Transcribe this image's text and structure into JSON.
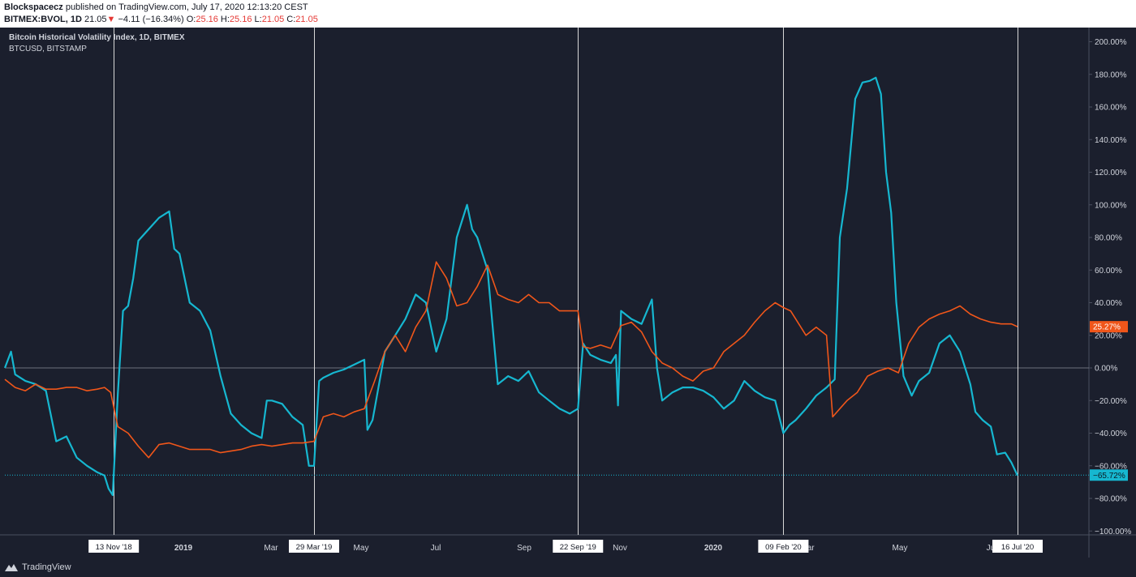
{
  "header": {
    "publisher": "Blockspacecz",
    "published_text": " published on TradingView.com, July 17, 2020 12:13:20 CEST",
    "symbol": "BITMEX:BVOL, 1D",
    "last": "21.05",
    "change_arrow": "▼",
    "change": "−4.11 (−16.34%)",
    "o_label": "O:",
    "o_val": "25.16",
    "h_label": "H:",
    "h_val": "25.16",
    "l_label": "L:",
    "l_val": "21.05",
    "c_label": "C:",
    "c_val": "21.05"
  },
  "legend": {
    "title": "Bitcoin Historical Volatility Index, 1D, BITMEX",
    "subtitle": "BTCUSD, BITSTAMP"
  },
  "footer": {
    "brand": "TradingView"
  },
  "colors": {
    "background": "#1b1f2d",
    "btc": "#16b7d0",
    "bvol": "#f0561a",
    "axis_text": "#d1d4dc",
    "crosshair": "#d8d8d8"
  },
  "chart_data": {
    "type": "line",
    "y_unit": "%",
    "ylim": [
      -105,
      205
    ],
    "y_ticks": [
      "200.00%",
      "180.00%",
      "160.00%",
      "140.00%",
      "120.00%",
      "100.00%",
      "80.00%",
      "60.00%",
      "40.00%",
      "20.00%",
      "0.00%",
      "−20.00%",
      "−40.00%",
      "−60.00%",
      "−80.00%",
      "−100.00%"
    ],
    "x_ticks": [
      "2019",
      "Mar",
      "May",
      "Jul",
      "Sep",
      "Nov",
      "2020",
      "Mar",
      "May",
      "Jul"
    ],
    "x_tick_pos": [
      14.7,
      20.6,
      26.5,
      32.5,
      38.8,
      44.8,
      50.7,
      56.5,
      62.5,
      68.6
    ],
    "date_markers": [
      {
        "label": "13 Nov '18",
        "week": 10.6
      },
      {
        "label": "29 Mar '19",
        "week": 30.1
      },
      {
        "label": "22 Sep '19",
        "week": 55.8
      },
      {
        "label": "09 Feb '20",
        "week": 75.8
      },
      {
        "label": "16 Jul '20",
        "week": 98.6
      }
    ],
    "x_range_weeks": [
      0,
      98.6
    ],
    "current_labels": [
      {
        "series": "BTCUSD",
        "text": "−65.72%",
        "value": -65.72
      },
      {
        "series": "BVOL",
        "text": "25.27%",
        "value": 25.27
      }
    ],
    "series": [
      {
        "id": "BTCUSD",
        "color": "#16b7d0",
        "points": [
          [
            0,
            0
          ],
          [
            0.6,
            10
          ],
          [
            1,
            -4
          ],
          [
            2,
            -8
          ],
          [
            3,
            -10
          ],
          [
            4,
            -14
          ],
          [
            5,
            -45
          ],
          [
            6,
            -42
          ],
          [
            7,
            -55
          ],
          [
            8,
            -60
          ],
          [
            9,
            -64
          ],
          [
            9.7,
            -66
          ],
          [
            10.1,
            -74
          ],
          [
            10.5,
            -78
          ],
          [
            11,
            -16
          ],
          [
            11.5,
            35
          ],
          [
            12,
            38
          ],
          [
            12.5,
            55
          ],
          [
            13,
            78
          ],
          [
            14,
            85
          ],
          [
            15,
            92
          ],
          [
            16,
            96
          ],
          [
            16.5,
            73
          ],
          [
            17,
            70
          ],
          [
            18,
            40
          ],
          [
            19,
            35
          ],
          [
            20,
            23
          ],
          [
            21,
            -5
          ],
          [
            22,
            -28
          ],
          [
            23,
            -35
          ],
          [
            24,
            -40
          ],
          [
            25,
            -43
          ],
          [
            25.5,
            -20
          ],
          [
            26,
            -20
          ],
          [
            27,
            -22
          ],
          [
            28,
            -30
          ],
          [
            29,
            -35
          ],
          [
            29.6,
            -60
          ],
          [
            30.1,
            -60
          ],
          [
            30.6,
            -8
          ],
          [
            31,
            -6
          ],
          [
            32,
            -3
          ],
          [
            33,
            -1
          ],
          [
            34,
            2
          ],
          [
            35,
            5
          ],
          [
            35.3,
            -38
          ],
          [
            35.8,
            -32
          ],
          [
            36,
            -25
          ],
          [
            37,
            10
          ],
          [
            38,
            20
          ],
          [
            39,
            30
          ],
          [
            40,
            45
          ],
          [
            41,
            40
          ],
          [
            42,
            10
          ],
          [
            43,
            30
          ],
          [
            44,
            80
          ],
          [
            45,
            100
          ],
          [
            45.5,
            85
          ],
          [
            46,
            80
          ],
          [
            47,
            60
          ],
          [
            48,
            -10
          ],
          [
            49,
            -5
          ],
          [
            50,
            -8
          ],
          [
            51,
            -2
          ],
          [
            52,
            -15
          ],
          [
            53,
            -20
          ],
          [
            54,
            -25
          ],
          [
            55,
            -28
          ],
          [
            55.8,
            -25
          ],
          [
            56.3,
            15
          ],
          [
            57,
            8
          ],
          [
            58,
            5
          ],
          [
            59,
            3
          ],
          [
            59.5,
            8
          ],
          [
            59.7,
            -23
          ],
          [
            60,
            35
          ],
          [
            61,
            30
          ],
          [
            62,
            27
          ],
          [
            63,
            42
          ],
          [
            63.5,
            0
          ],
          [
            64,
            -20
          ],
          [
            65,
            -15
          ],
          [
            66,
            -12
          ],
          [
            67,
            -12
          ],
          [
            68,
            -14
          ],
          [
            69,
            -18
          ],
          [
            70,
            -25
          ],
          [
            71,
            -20
          ],
          [
            72,
            -8
          ],
          [
            73,
            -14
          ],
          [
            74,
            -18
          ],
          [
            75,
            -20
          ],
          [
            75.8,
            -40
          ],
          [
            76.4,
            -35
          ],
          [
            77,
            -32
          ],
          [
            78,
            -25
          ],
          [
            79,
            -17
          ],
          [
            80,
            -12
          ],
          [
            80.8,
            -7
          ],
          [
            81.3,
            80
          ],
          [
            82,
            110
          ],
          [
            82.8,
            165
          ],
          [
            83.5,
            175
          ],
          [
            84.2,
            176
          ],
          [
            84.8,
            178
          ],
          [
            85.3,
            168
          ],
          [
            85.8,
            120
          ],
          [
            86.3,
            95
          ],
          [
            86.8,
            40
          ],
          [
            87.5,
            -5
          ],
          [
            88.3,
            -17
          ],
          [
            89,
            -8
          ],
          [
            90,
            -3
          ],
          [
            91,
            15
          ],
          [
            92,
            20
          ],
          [
            93,
            10
          ],
          [
            94,
            -10
          ],
          [
            94.5,
            -27
          ],
          [
            95.2,
            -32
          ],
          [
            96,
            -36
          ],
          [
            96.6,
            -53
          ],
          [
            97.4,
            -52
          ],
          [
            98,
            -58
          ],
          [
            98.6,
            -66
          ]
        ]
      },
      {
        "id": "BVOL",
        "color": "#f0561a",
        "points": [
          [
            0,
            -7
          ],
          [
            1,
            -12
          ],
          [
            2,
            -14
          ],
          [
            3,
            -10
          ],
          [
            4,
            -13
          ],
          [
            5,
            -13
          ],
          [
            6,
            -12
          ],
          [
            7,
            -12
          ],
          [
            8,
            -14
          ],
          [
            9,
            -13
          ],
          [
            9.7,
            -12
          ],
          [
            10.3,
            -15
          ],
          [
            11,
            -36
          ],
          [
            12,
            -40
          ],
          [
            13,
            -48
          ],
          [
            14,
            -55
          ],
          [
            15,
            -47
          ],
          [
            16,
            -46
          ],
          [
            17,
            -48
          ],
          [
            18,
            -50
          ],
          [
            19,
            -50
          ],
          [
            20,
            -50
          ],
          [
            21,
            -52
          ],
          [
            22,
            -51
          ],
          [
            23,
            -50
          ],
          [
            24,
            -48
          ],
          [
            25,
            -47
          ],
          [
            26,
            -48
          ],
          [
            27,
            -47
          ],
          [
            28,
            -46
          ],
          [
            29,
            -46
          ],
          [
            30.1,
            -45
          ],
          [
            31,
            -30
          ],
          [
            32,
            -28
          ],
          [
            33,
            -30
          ],
          [
            34,
            -27
          ],
          [
            35,
            -25
          ],
          [
            36,
            -8
          ],
          [
            37,
            10
          ],
          [
            38,
            20
          ],
          [
            39,
            10
          ],
          [
            40,
            25
          ],
          [
            41,
            35
          ],
          [
            42,
            65
          ],
          [
            43,
            55
          ],
          [
            44,
            38
          ],
          [
            45,
            40
          ],
          [
            46,
            50
          ],
          [
            47,
            63
          ],
          [
            48,
            45
          ],
          [
            49,
            42
          ],
          [
            50,
            40
          ],
          [
            51,
            45
          ],
          [
            52,
            40
          ],
          [
            53,
            40
          ],
          [
            54,
            35
          ],
          [
            55.8,
            35
          ],
          [
            56.3,
            13
          ],
          [
            57,
            12
          ],
          [
            58,
            14
          ],
          [
            59,
            12
          ],
          [
            60,
            26
          ],
          [
            61,
            28
          ],
          [
            62,
            22
          ],
          [
            63,
            10
          ],
          [
            64,
            3
          ],
          [
            65,
            0
          ],
          [
            66,
            -5
          ],
          [
            67,
            -8
          ],
          [
            68,
            -2
          ],
          [
            69,
            0
          ],
          [
            70,
            10
          ],
          [
            71,
            15
          ],
          [
            72,
            20
          ],
          [
            73,
            28
          ],
          [
            74,
            35
          ],
          [
            75,
            40
          ],
          [
            75.8,
            37
          ],
          [
            76.5,
            35
          ],
          [
            77,
            30
          ],
          [
            78,
            20
          ],
          [
            79,
            25
          ],
          [
            80,
            20
          ],
          [
            80.6,
            -30
          ],
          [
            81.3,
            -25
          ],
          [
            82,
            -20
          ],
          [
            83,
            -15
          ],
          [
            84,
            -5
          ],
          [
            85,
            -2
          ],
          [
            86,
            0
          ],
          [
            87,
            -3
          ],
          [
            88,
            15
          ],
          [
            89,
            25
          ],
          [
            90,
            30
          ],
          [
            91,
            33
          ],
          [
            92,
            35
          ],
          [
            93,
            38
          ],
          [
            94,
            33
          ],
          [
            95,
            30
          ],
          [
            96,
            28
          ],
          [
            97,
            27
          ],
          [
            98,
            27
          ],
          [
            98.6,
            25.3
          ]
        ]
      }
    ]
  }
}
